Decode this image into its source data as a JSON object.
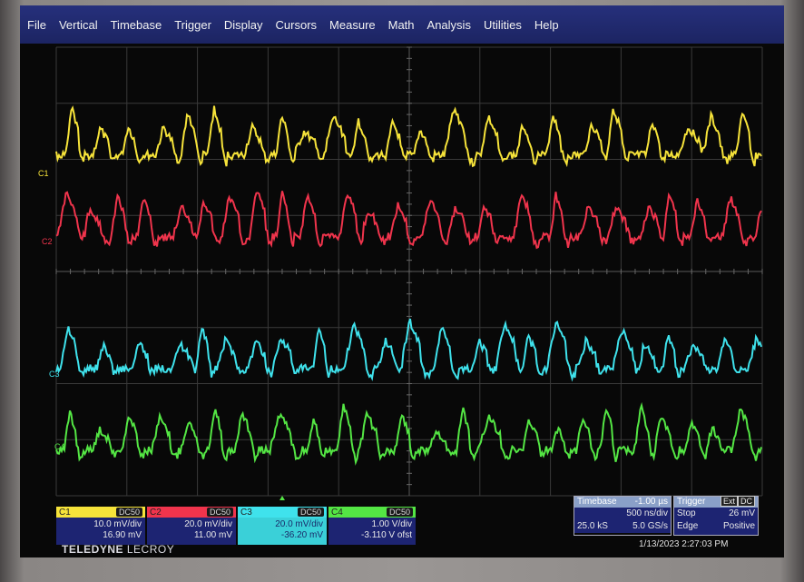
{
  "menu": [
    "File",
    "Vertical",
    "Timebase",
    "Trigger",
    "Display",
    "Cursors",
    "Measure",
    "Math",
    "Analysis",
    "Utilities",
    "Help"
  ],
  "traces": [
    {
      "label": "C1",
      "color": "#f6e33a"
    },
    {
      "label": "C2",
      "color": "#f0344c"
    },
    {
      "label": "C3",
      "color": "#3fe2ec"
    },
    {
      "label": "C4",
      "color": "#54e644"
    }
  ],
  "channels": [
    {
      "name": "C1",
      "coupling": "DC50",
      "scale": "10.0 mV/div",
      "offset": "16.90 mV",
      "color": "#f6e33a"
    },
    {
      "name": "C2",
      "coupling": "DC50",
      "scale": "20.0 mV/div",
      "offset": "11.00 mV",
      "color": "#f0344c"
    },
    {
      "name": "C3",
      "coupling": "DC50",
      "scale": "20.0 mV/div",
      "offset": "-36.20 mV",
      "color": "#3fe2ec"
    },
    {
      "name": "C4",
      "coupling": "DC50",
      "scale": "1.00 V/div",
      "offset": "-3.110 V ofst",
      "color": "#54e644"
    }
  ],
  "timebase": {
    "label": "Timebase",
    "delay": "-1.00 µs",
    "div": "500 ns/div",
    "samples": "25.0 kS",
    "rate": "5.0 GS/s"
  },
  "trigger": {
    "label": "Trigger",
    "source_badge": "Ext",
    "coupling_badge": "DC",
    "mode": "Stop",
    "level": "26 mV",
    "type": "Edge",
    "slope": "Positive"
  },
  "brand": {
    "name1": "TELEDYNE",
    "name2": "LECROY"
  },
  "datetime": "1/13/2023 2:27:03 PM"
}
